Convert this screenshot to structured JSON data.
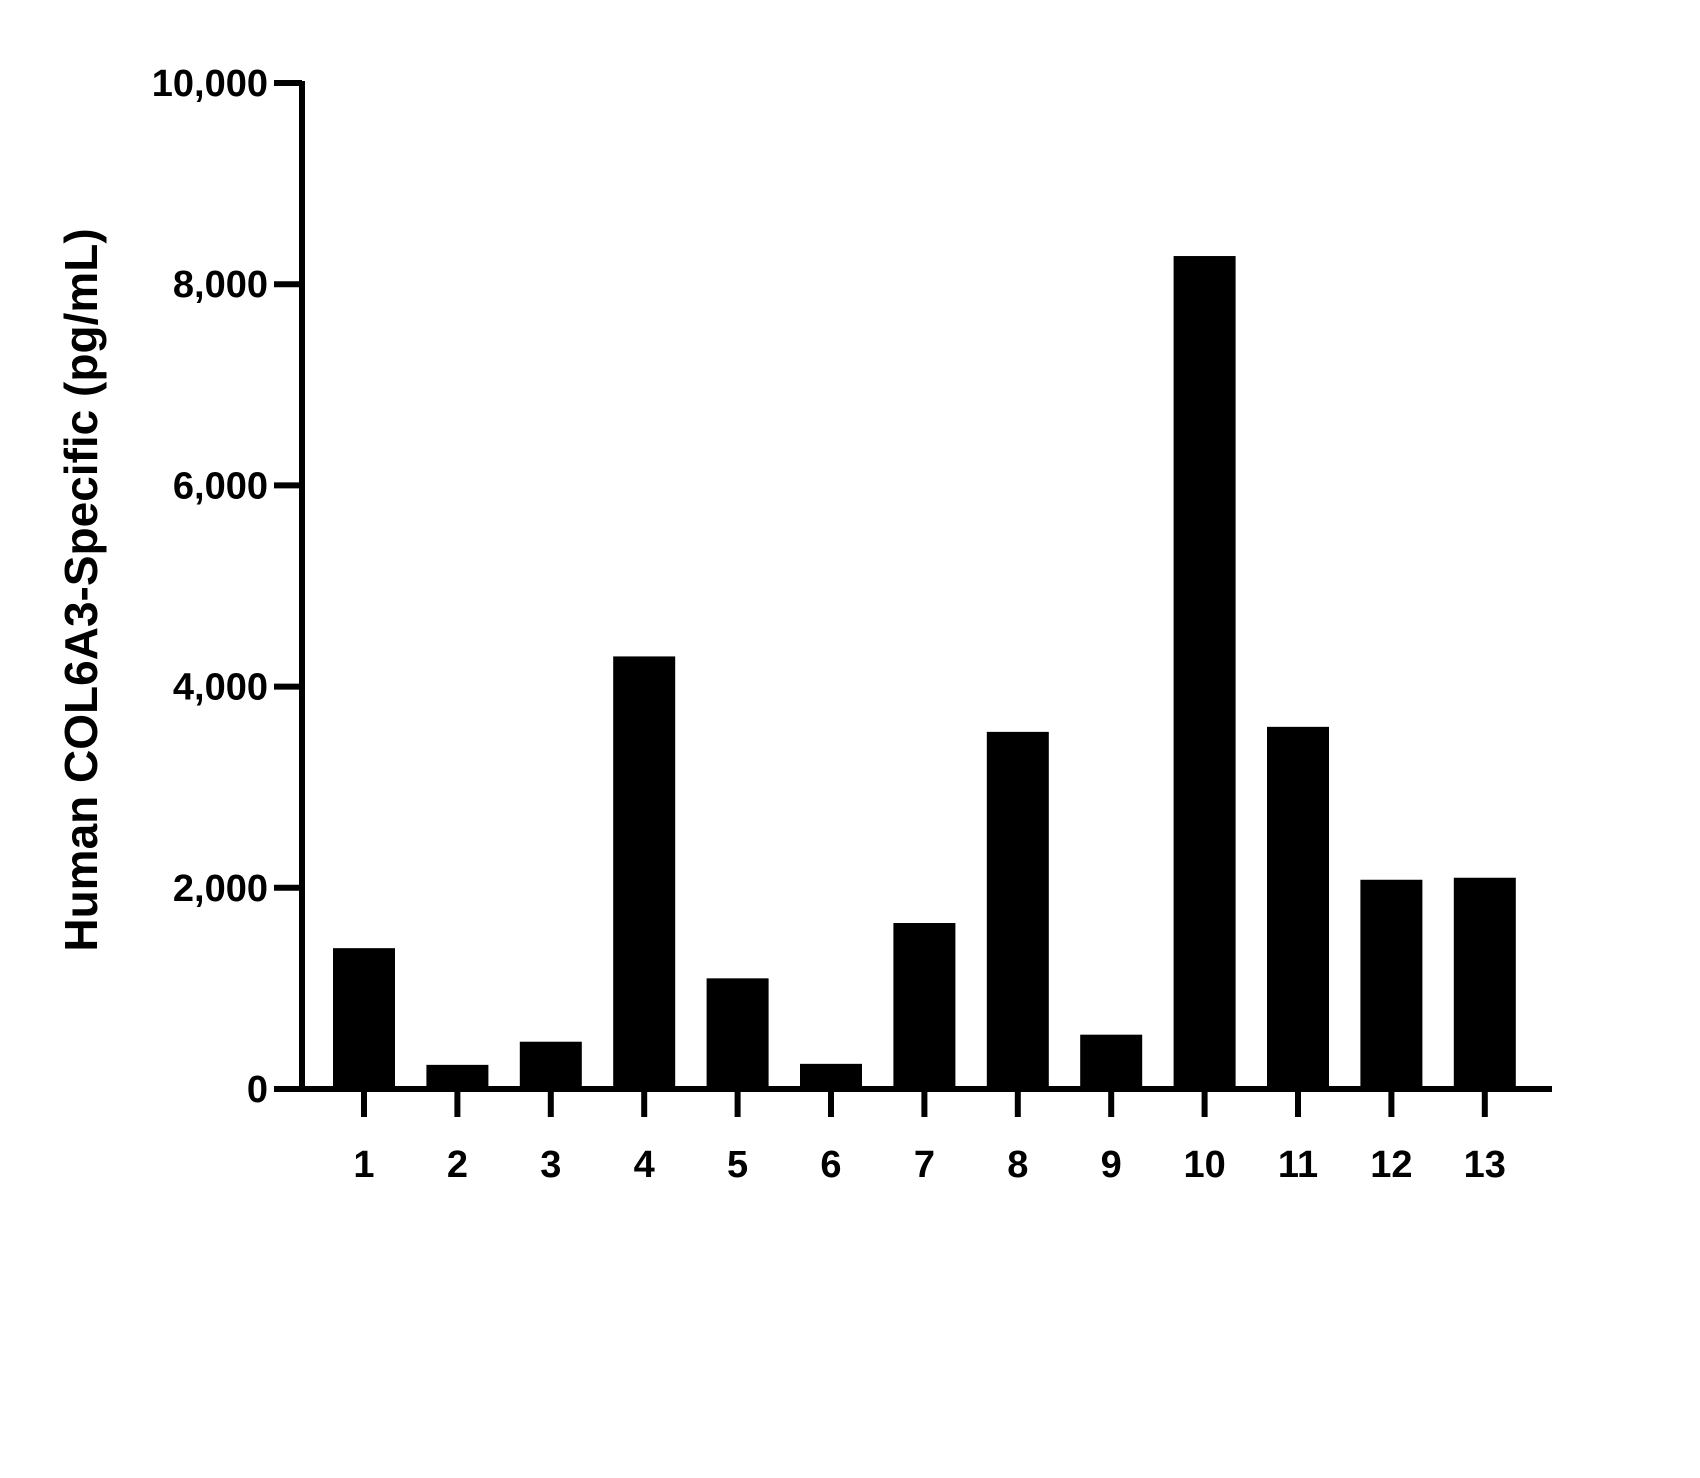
{
  "chart_data": {
    "type": "bar",
    "title": "",
    "xlabel": "",
    "ylabel": "Human COL6A3-Specific (pg/mL)",
    "categories": [
      "1",
      "2",
      "3",
      "4",
      "5",
      "6",
      "7",
      "8",
      "9",
      "10",
      "11",
      "12",
      "13"
    ],
    "values": [
      1400,
      240,
      470,
      4300,
      1100,
      250,
      1650,
      3550,
      540,
      8280,
      3600,
      2080,
      2100
    ],
    "ylim": [
      0,
      10000
    ],
    "yticks": [
      0,
      2000,
      4000,
      6000,
      8000,
      10000
    ],
    "ytick_labels": [
      "0",
      "2,000",
      "4,000",
      "6,000",
      "8,000",
      "10,000"
    ],
    "grid": false,
    "legend": "none",
    "bar_color": "#000000"
  }
}
